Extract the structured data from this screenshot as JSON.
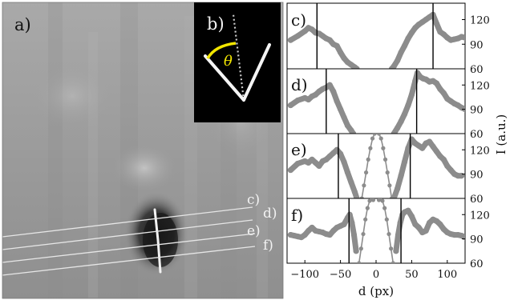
{
  "panel_a": {
    "label": "a)",
    "line_labels": [
      "c)",
      "d)",
      "e)",
      "f)"
    ]
  },
  "panel_b": {
    "label": "b)",
    "angle_symbol": "θ",
    "angle_color": "#f2e600"
  },
  "colors": {
    "data": "#8c8c8c",
    "marker_line": "#000000",
    "axes": "#000000"
  },
  "chart_data": {
    "type": "scatter",
    "xlabel": "d (px)",
    "ylabel": "I (a.u.)",
    "xlim": [
      -125,
      125
    ],
    "ylim": [
      60,
      140
    ],
    "xticks": [
      -100,
      -50,
      0,
      50,
      100
    ],
    "yticks": [
      60,
      90,
      120
    ],
    "panels": [
      {
        "label": "c)",
        "markers": [
          -83,
          80
        ],
        "curves": [
          {
            "name": "",
            "style": "thick",
            "x": [
              -120,
              -110,
              -100,
              -95,
              -90,
              -85,
              -80,
              -75,
              -70,
              -65,
              -60,
              -55,
              -50,
              -45,
              -40,
              -35,
              -30,
              -27
            ],
            "y": [
              95,
              100,
              106,
              110,
              108,
              104,
              103,
              100,
              97,
              95,
              90,
              88,
              80,
              73,
              68,
              65,
              62,
              60
            ]
          },
          {
            "name": "",
            "style": "thick",
            "x": [
              22,
              25,
              30,
              35,
              40,
              45,
              50,
              55,
              60,
              65,
              70,
              75,
              80,
              85,
              90,
              95,
              100,
              105,
              110,
              115,
              120,
              125
            ],
            "y": [
              60,
              63,
              70,
              80,
              88,
              97,
              104,
              110,
              114,
              117,
              120,
              123,
              126,
              115,
              105,
              102,
              98,
              95,
              96,
              97,
              99,
              98
            ]
          }
        ]
      },
      {
        "label": "d)",
        "markers": [
          -70,
          57
        ],
        "curves": [
          {
            "name": "",
            "style": "thick",
            "x": [
              -120,
              -110,
              -100,
              -95,
              -90,
              -85,
              -80,
              -75,
              -70,
              -65,
              -60,
              -55,
              -50,
              -45,
              -40,
              -35,
              -32
            ],
            "y": [
              95,
              101,
              104,
              102,
              106,
              108,
              112,
              115,
              117,
              120,
              112,
              100,
              90,
              80,
              70,
              64,
              60
            ]
          },
          {
            "name": "",
            "style": "thick",
            "x": [
              25,
              30,
              35,
              40,
              45,
              50,
              55,
              58,
              62,
              66,
              70,
              75,
              80,
              85,
              90,
              95,
              100,
              105,
              110,
              115,
              120,
              125
            ],
            "y": [
              60,
              67,
              75,
              84,
              95,
              108,
              125,
              135,
              130,
              128,
              127,
              124,
              125,
              122,
              115,
              110,
              103,
              100,
              97,
              95,
              92,
              90
            ]
          }
        ]
      },
      {
        "label": "e)",
        "markers": [
          -53,
          48
        ],
        "curves": [
          {
            "name": "",
            "style": "thick",
            "x": [
              -120,
              -110,
              -100,
              -95,
              -90,
              -85,
              -80,
              -75,
              -70,
              -65,
              -60,
              -55,
              -50,
              -45,
              -40,
              -35,
              -30,
              -27
            ],
            "y": [
              95,
              103,
              106,
              104,
              108,
              104,
              100,
              106,
              108,
              112,
              116,
              120,
              115,
              105,
              92,
              80,
              68,
              60
            ]
          },
          {
            "name": "",
            "style": "dotted",
            "x": [
              -20,
              -17,
              -14,
              -11,
              -8,
              -5,
              -2
            ],
            "y": [
              60,
              76,
              92,
              108,
              122,
              134,
              140
            ]
          },
          {
            "name": "",
            "style": "dotted",
            "x": [
              4,
              7,
              10,
              13,
              16,
              19,
              22
            ],
            "y": [
              140,
              134,
              122,
              108,
              92,
              76,
              60
            ]
          },
          {
            "name": "",
            "style": "thick",
            "x": [
              25,
              30,
              35,
              40,
              45,
              50,
              55,
              60,
              65,
              70,
              75,
              80,
              85,
              90,
              95,
              100,
              105,
              110,
              115,
              120
            ],
            "y": [
              60,
              72,
              88,
              105,
              122,
              133,
              128,
              125,
              122,
              128,
              130,
              124,
              118,
              112,
              108,
              100,
              95,
              90,
              88,
              88
            ]
          }
        ]
      },
      {
        "label": "f)",
        "markers": [
          -38,
          35
        ],
        "curves": [
          {
            "name": "",
            "style": "thick",
            "x": [
              -120,
              -115,
              -110,
              -105,
              -100,
              -95,
              -90,
              -85,
              -80,
              -75,
              -70,
              -65,
              -60,
              -55,
              -50,
              -45,
              -40,
              -37,
              -34,
              -31,
              -28
            ],
            "y": [
              95,
              94,
              93,
              92,
              95,
              100,
              104,
              100,
              99,
              98,
              96,
              95,
              100,
              104,
              106,
              108,
              116,
              120,
              110,
              95,
              75
            ]
          },
          {
            "name": "",
            "style": "dotted",
            "x": [
              -24,
              -21,
              -18,
              -15,
              -12,
              -9,
              -6,
              -4
            ],
            "y": [
              60,
              78,
              96,
              114,
              128,
              137,
              140,
              138
            ]
          },
          {
            "name": "",
            "style": "dotted",
            "x": [
              4,
              6,
              9,
              12,
              15,
              18,
              21,
              24
            ],
            "y": [
              138,
              140,
              137,
              128,
              114,
              96,
              78,
              60
            ]
          },
          {
            "name": "",
            "style": "thick",
            "x": [
              28,
              31,
              34,
              37,
              40,
              45,
              50,
              55,
              60,
              65,
              70,
              75,
              80,
              85,
              90,
              95,
              100,
              105,
              110,
              115,
              120,
              125
            ],
            "y": [
              75,
              95,
              110,
              120,
              123,
              125,
              118,
              108,
              104,
              98,
              100,
              110,
              114,
              112,
              108,
              102,
              98,
              96,
              95,
              95,
              94,
              92
            ]
          }
        ]
      }
    ]
  }
}
